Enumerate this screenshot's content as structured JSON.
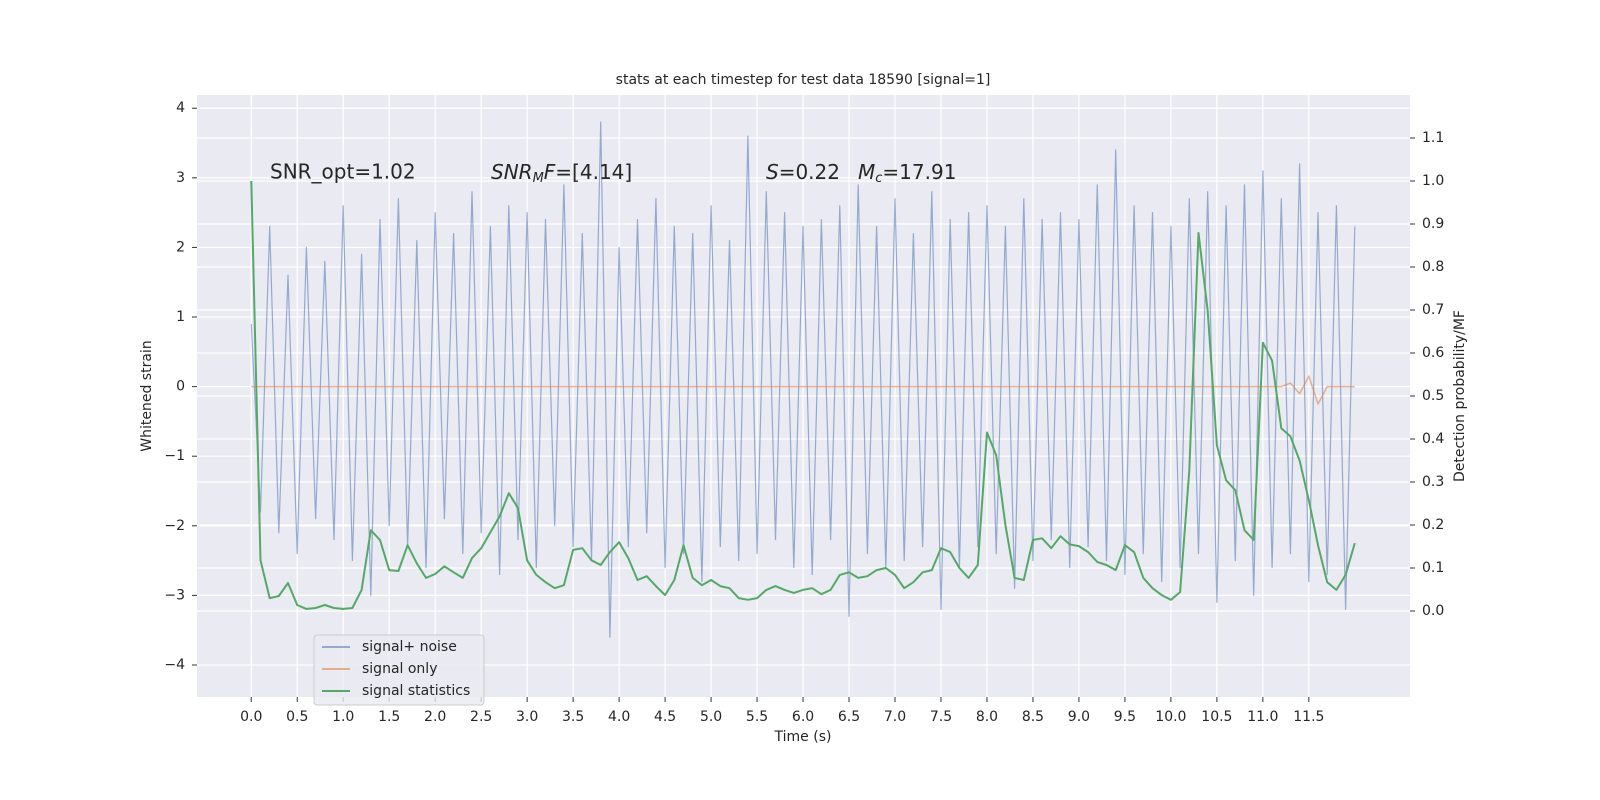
{
  "chart_data": {
    "type": "line",
    "title": "stats at each timestep for test data 18590 [signal=1]",
    "xlabel": "Time (s)",
    "ylabel": "Whitened strain",
    "y2label": "Detection probability/MF",
    "annotations": [
      [
        "SNR_opt=1.02"
      ],
      [
        "SNR",
        "M",
        "F",
        "=[4.14]"
      ],
      [
        "S",
        "=0.22"
      ],
      [
        "M",
        "c",
        "=17.91"
      ]
    ],
    "xlim": [
      -0.59,
      12.6
    ],
    "ylim": [
      -4.46,
      4.19
    ],
    "y2lim": [
      -0.2,
      1.2
    ],
    "xticks": [
      {
        "value": 0,
        "label": "0.0"
      },
      0.5,
      {
        "value": 1,
        "label": "1.0"
      },
      1.5,
      {
        "value": 2,
        "label": "2.0"
      },
      2.5,
      {
        "value": 3,
        "label": "3.0"
      },
      3.5,
      {
        "value": 4,
        "label": "4.0"
      },
      4.5,
      {
        "value": 5,
        "label": "5.0"
      },
      5.5,
      {
        "value": 6,
        "label": "6.0"
      },
      6.5,
      {
        "value": 7,
        "label": "7.0"
      },
      7.5,
      {
        "value": 8,
        "label": "8.0"
      },
      8.5,
      {
        "value": 9,
        "label": "9.0"
      },
      9.5,
      {
        "value": 10,
        "label": "10.0"
      },
      10.5,
      {
        "value": 11,
        "label": "11.0"
      },
      11.5
    ],
    "yticks": [
      {
        "value": -4,
        "label": "−4"
      },
      {
        "value": -3,
        "label": "−3"
      },
      {
        "value": -2,
        "label": "−2"
      },
      {
        "value": -1,
        "label": "−1"
      },
      0,
      1,
      2,
      3,
      4
    ],
    "y2ticks": [
      {
        "value": 0,
        "label": "0.0"
      },
      0.1,
      0.2,
      0.3,
      0.4,
      0.5,
      0.6,
      0.7,
      0.8,
      0.9,
      {
        "value": 1,
        "label": "1.0"
      },
      1.1
    ],
    "grid": true,
    "legend": "lower left",
    "x": [
      0,
      0.1,
      0.2,
      0.3,
      0.4,
      0.5,
      0.6,
      0.7,
      0.8,
      0.9,
      1,
      1.1,
      1.2,
      1.3,
      1.4,
      1.5,
      1.6,
      1.7,
      1.8,
      1.9,
      2,
      2.1,
      2.2,
      2.3,
      2.4,
      2.5,
      2.6,
      2.7,
      2.8,
      2.9,
      3,
      3.1,
      3.2,
      3.3,
      3.4,
      3.5,
      3.6,
      3.7,
      3.8,
      3.9,
      4,
      4.1,
      4.2,
      4.3,
      4.4,
      4.5,
      4.6,
      4.7,
      4.8,
      4.9,
      5,
      5.1,
      5.2,
      5.3,
      5.4,
      5.5,
      5.6,
      5.7,
      5.8,
      5.9,
      6,
      6.1,
      6.2,
      6.3,
      6.4,
      6.5,
      6.6,
      6.7,
      6.8,
      6.9,
      7,
      7.1,
      7.2,
      7.3,
      7.4,
      7.5,
      7.6,
      7.7,
      7.8,
      7.9,
      8,
      8.1,
      8.2,
      8.3,
      8.4,
      8.5,
      8.6,
      8.7,
      8.8,
      8.9,
      9,
      9.1,
      9.2,
      9.3,
      9.4,
      9.5,
      9.6,
      9.7,
      9.8,
      9.9,
      10,
      10.1,
      10.2,
      10.3,
      10.4,
      10.5,
      10.6,
      10.7,
      10.8,
      10.9,
      11,
      11.1,
      11.2,
      11.3,
      11.4,
      11.5,
      11.6,
      11.7,
      11.8,
      11.9,
      12
    ],
    "series": [
      {
        "name": "signal+ noise",
        "color": "#4c72b0",
        "values": [
          0.9,
          -1.8,
          2.3,
          -2.1,
          1.6,
          -2.4,
          2.0,
          -1.9,
          1.8,
          -2.2,
          2.6,
          -2.5,
          1.9,
          -3.0,
          2.4,
          -2.0,
          2.7,
          -2.3,
          2.1,
          -2.6,
          2.5,
          -1.9,
          2.2,
          -2.4,
          2.8,
          -2.1,
          2.3,
          -2.7,
          2.6,
          -2.2,
          2.5,
          -2.6,
          2.4,
          -2.0,
          2.9,
          -2.3,
          2.2,
          -2.5,
          3.8,
          -3.6,
          2.0,
          -2.3,
          2.4,
          -2.1,
          2.7,
          -2.6,
          2.3,
          -2.4,
          2.2,
          -2.8,
          2.6,
          -2.3,
          2.1,
          -2.5,
          3.6,
          -2.4,
          2.8,
          -2.2,
          2.5,
          -2.6,
          2.3,
          -2.7,
          2.4,
          -2.2,
          2.6,
          -3.3,
          2.9,
          -2.4,
          2.3,
          -2.6,
          2.7,
          -2.5,
          2.2,
          -2.3,
          2.8,
          -3.2,
          2.4,
          -2.6,
          2.5,
          -2.3,
          2.6,
          -2.4,
          2.3,
          -2.9,
          2.7,
          -2.5,
          2.4,
          -2.2,
          2.5,
          -2.6,
          2.4,
          -2.3,
          2.9,
          -2.5,
          3.4,
          -2.7,
          2.6,
          -2.4,
          2.5,
          -2.8,
          2.3,
          -2.6,
          2.7,
          -2.4,
          2.8,
          -3.1,
          2.6,
          -2.5,
          2.9,
          -3.0,
          3.1,
          -2.6,
          2.7,
          -2.4,
          3.2,
          -2.8,
          2.5,
          -2.7,
          2.6,
          -3.2,
          2.3
        ]
      },
      {
        "name": "signal only",
        "color": "#dd8452",
        "values": [
          0,
          0,
          0,
          0,
          0,
          0,
          0,
          0,
          0,
          0,
          0,
          0,
          0,
          0,
          0,
          0,
          0,
          0,
          0,
          0,
          0,
          0,
          0,
          0,
          0,
          0,
          0,
          0,
          0,
          0,
          0,
          0,
          0,
          0,
          0,
          0,
          0,
          0,
          0,
          0,
          0,
          0,
          0,
          0,
          0,
          0,
          0,
          0,
          0,
          0,
          0,
          0,
          0,
          0,
          0,
          0,
          0,
          0,
          0,
          0,
          0,
          0,
          0,
          0,
          0,
          0,
          0,
          0,
          0,
          0,
          0,
          0,
          0,
          0,
          0,
          0,
          0,
          0,
          0,
          0,
          0,
          0,
          0,
          0,
          0,
          0,
          0,
          0,
          0,
          0,
          0,
          0,
          0,
          0,
          0,
          0,
          0,
          0,
          0,
          0,
          0,
          0,
          0,
          0,
          0,
          0,
          0,
          0,
          0,
          0,
          0,
          0,
          0,
          0.05,
          -0.1,
          0.15,
          -0.25,
          0,
          0,
          0,
          0
        ]
      },
      {
        "name": "signal statistics",
        "color": "#55a868",
        "axis": "y2",
        "values": [
          1.0,
          0.118,
          0.03,
          0.035,
          0.065,
          0.014,
          0.005,
          0.007,
          0.014,
          0.007,
          0.005,
          0.007,
          0.049,
          0.188,
          0.165,
          0.095,
          0.093,
          0.153,
          0.111,
          0.077,
          0.086,
          0.104,
          0.09,
          0.077,
          0.123,
          0.146,
          0.183,
          0.22,
          0.274,
          0.239,
          0.118,
          0.084,
          0.067,
          0.053,
          0.06,
          0.142,
          0.146,
          0.118,
          0.107,
          0.137,
          0.16,
          0.123,
          0.072,
          0.081,
          0.058,
          0.037,
          0.072,
          0.153,
          0.077,
          0.06,
          0.072,
          0.058,
          0.053,
          0.03,
          0.026,
          0.03,
          0.049,
          0.058,
          0.049,
          0.042,
          0.049,
          0.053,
          0.039,
          0.049,
          0.084,
          0.09,
          0.077,
          0.081,
          0.095,
          0.1,
          0.084,
          0.053,
          0.067,
          0.09,
          0.095,
          0.146,
          0.137,
          0.1,
          0.077,
          0.107,
          0.415,
          0.362,
          0.2,
          0.077,
          0.072,
          0.165,
          0.169,
          0.146,
          0.174,
          0.155,
          0.151,
          0.137,
          0.114,
          0.107,
          0.095,
          0.153,
          0.137,
          0.077,
          0.053,
          0.037,
          0.026,
          0.044,
          0.327,
          0.879,
          0.698,
          0.385,
          0.304,
          0.281,
          0.188,
          0.165,
          0.624,
          0.582,
          0.425,
          0.406,
          0.35,
          0.258,
          0.153,
          0.067,
          0.049,
          0.084,
          0.158
        ]
      }
    ]
  }
}
